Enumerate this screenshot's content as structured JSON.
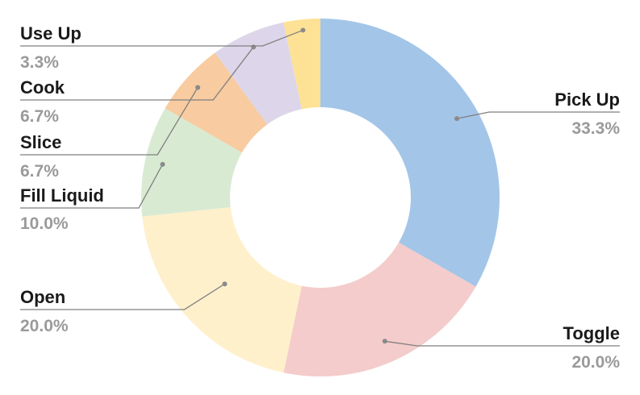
{
  "chart_data": {
    "type": "pie",
    "donut": true,
    "title": "",
    "legend": "none",
    "slices": [
      {
        "label": "Pick Up",
        "value": 33.3,
        "pct_label": "33.3%",
        "color": "#a3c5e8"
      },
      {
        "label": "Toggle",
        "value": 20.0,
        "pct_label": "20.0%",
        "color": "#f3cccb"
      },
      {
        "label": "Open",
        "value": 20.0,
        "pct_label": "20.0%",
        "color": "#fff0cc"
      },
      {
        "label": "Fill Liquid",
        "value": 10.0,
        "pct_label": "10.0%",
        "color": "#d9ead3"
      },
      {
        "label": "Slice",
        "value": 6.7,
        "pct_label": "6.7%",
        "color": "#f8cba0"
      },
      {
        "label": "Cook",
        "value": 6.7,
        "pct_label": "6.7%",
        "color": "#ddd6ea"
      },
      {
        "label": "Use Up",
        "value": 3.3,
        "pct_label": "3.3%",
        "color": "#fde295"
      }
    ]
  }
}
